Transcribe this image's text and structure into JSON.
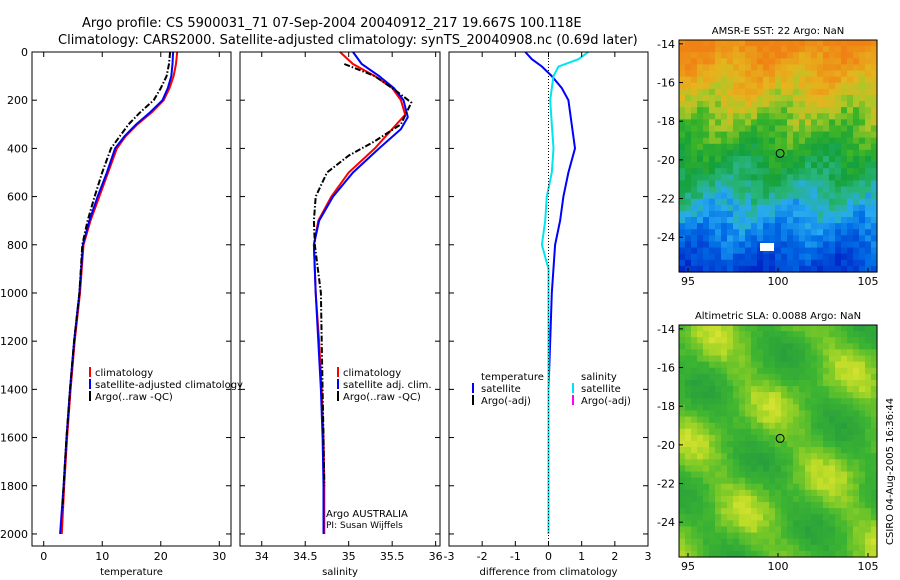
{
  "header": {
    "line1": "Argo profile: CS 5900031_71 07-Sep-2004 20040912_217 19.667S 100.118E",
    "line2": "Climatology: CARS2000. Satellite-adjusted climatology: synTS_20040908.nc (0.69d later)"
  },
  "colors": {
    "climatology": "#ff0000",
    "satellite": "#0000ff",
    "argo": "#000000",
    "salinity_satellite": "#00e5ee",
    "salinity_argo_adj": "#ff00ff"
  },
  "chart_data": [
    {
      "type": "line",
      "name": "temperature_profile",
      "xlabel": "temperature",
      "xlim": [
        -2,
        32
      ],
      "xticks": [
        0,
        10,
        20,
        30
      ],
      "ylim": [
        0,
        2050
      ],
      "yticks": [
        0,
        200,
        400,
        600,
        800,
        1000,
        1200,
        1400,
        1600,
        1800,
        2000
      ],
      "y_inverted": true,
      "legend": [
        "climatology",
        "satellite-adjusted climatology",
        "Argo(..raw -QC)"
      ],
      "series": [
        {
          "name": "climatology",
          "color": "#ff0000",
          "style": "solid",
          "points": [
            [
              22.8,
              0
            ],
            [
              22.6,
              50
            ],
            [
              22.2,
              100
            ],
            [
              21.5,
              150
            ],
            [
              20.5,
              200
            ],
            [
              18.5,
              250
            ],
            [
              16,
              300
            ],
            [
              14,
              350
            ],
            [
              12.5,
              400
            ],
            [
              11,
              500
            ],
            [
              9.5,
              600
            ],
            [
              8,
              700
            ],
            [
              6.8,
              800
            ],
            [
              6.2,
              1000
            ],
            [
              5.3,
              1200
            ],
            [
              4.6,
              1400
            ],
            [
              4,
              1600
            ],
            [
              3.5,
              1800
            ],
            [
              3.1,
              2000
            ]
          ]
        },
        {
          "name": "satellite-adjusted climatology",
          "color": "#0000ff",
          "style": "solid",
          "points": [
            [
              22.1,
              0
            ],
            [
              22,
              50
            ],
            [
              21.8,
              100
            ],
            [
              21.2,
              150
            ],
            [
              20.3,
              200
            ],
            [
              18.2,
              250
            ],
            [
              15.8,
              300
            ],
            [
              13.8,
              350
            ],
            [
              12.2,
              400
            ],
            [
              10.8,
              500
            ],
            [
              9.2,
              600
            ],
            [
              7.8,
              700
            ],
            [
              6.7,
              800
            ],
            [
              6.1,
              1000
            ],
            [
              5.2,
              1200
            ],
            [
              4.5,
              1400
            ],
            [
              3.9,
              1600
            ],
            [
              3.4,
              1800
            ],
            [
              2.8,
              2000
            ]
          ]
        },
        {
          "name": "Argo(..raw -QC)",
          "color": "#000000",
          "style": "dashdot",
          "points": [
            [
              21.6,
              0
            ],
            [
              21.4,
              50
            ],
            [
              21,
              100
            ],
            [
              20,
              150
            ],
            [
              18.8,
              200
            ],
            [
              16.5,
              250
            ],
            [
              14.5,
              300
            ],
            [
              13,
              350
            ],
            [
              11.5,
              400
            ],
            [
              10,
              500
            ],
            [
              8.7,
              600
            ],
            [
              7.5,
              700
            ],
            [
              6.6,
              800
            ],
            [
              6.1,
              1000
            ],
            [
              5.2,
              1200
            ],
            [
              4.5,
              1400
            ],
            [
              3.9,
              1600
            ],
            [
              3.4,
              1800
            ],
            [
              3.2,
              1900
            ]
          ]
        }
      ]
    },
    {
      "type": "line",
      "name": "salinity_profile",
      "xlabel": "salinity",
      "xlim": [
        33.75,
        36.05
      ],
      "xticks": [
        34,
        34.5,
        35,
        35.5,
        36
      ],
      "ylim": [
        0,
        2050
      ],
      "y_inverted": true,
      "legend": [
        "climatology",
        "satellite adj. clim.",
        "Argo(..raw -QC)"
      ],
      "annotation": [
        "Argo AUSTRALIA",
        "PI: Susan Wijffels"
      ],
      "series": [
        {
          "name": "climatology",
          "color": "#ff0000",
          "style": "solid",
          "points": [
            [
              34.9,
              0
            ],
            [
              35.05,
              50
            ],
            [
              35.3,
              100
            ],
            [
              35.5,
              150
            ],
            [
              35.6,
              200
            ],
            [
              35.65,
              260
            ],
            [
              35.55,
              300
            ],
            [
              35.3,
              400
            ],
            [
              35,
              500
            ],
            [
              34.8,
              600
            ],
            [
              34.65,
              700
            ],
            [
              34.6,
              800
            ],
            [
              34.62,
              1000
            ],
            [
              34.66,
              1200
            ],
            [
              34.69,
              1400
            ],
            [
              34.71,
              1600
            ],
            [
              34.72,
              1800
            ],
            [
              34.72,
              2000
            ]
          ]
        },
        {
          "name": "satellite adj. clim.",
          "color": "#0000ff",
          "style": "solid",
          "points": [
            [
              35.05,
              0
            ],
            [
              35.15,
              50
            ],
            [
              35.35,
              100
            ],
            [
              35.52,
              150
            ],
            [
              35.63,
              200
            ],
            [
              35.68,
              270
            ],
            [
              35.6,
              320
            ],
            [
              35.35,
              400
            ],
            [
              35.05,
              500
            ],
            [
              34.82,
              600
            ],
            [
              34.66,
              700
            ],
            [
              34.6,
              800
            ],
            [
              34.62,
              1000
            ],
            [
              34.65,
              1200
            ],
            [
              34.68,
              1400
            ],
            [
              34.7,
              1600
            ],
            [
              34.71,
              1800
            ],
            [
              34.71,
              2000
            ]
          ]
        },
        {
          "name": "Argo(..raw -QC)",
          "color": "#000000",
          "style": "dashdot",
          "points": [
            [
              34.95,
              50
            ],
            [
              35.3,
              100
            ],
            [
              35.5,
              150
            ],
            [
              35.65,
              190
            ],
            [
              35.72,
              210
            ],
            [
              35.6,
              300
            ],
            [
              35.3,
              370
            ],
            [
              35,
              430
            ],
            [
              34.75,
              500
            ],
            [
              34.62,
              600
            ],
            [
              34.6,
              700
            ],
            [
              34.61,
              800
            ],
            [
              34.68,
              1000
            ],
            [
              34.69,
              1200
            ],
            [
              34.7,
              1400
            ],
            [
              34.71,
              1600
            ],
            [
              34.72,
              1800
            ]
          ]
        }
      ]
    },
    {
      "type": "line",
      "name": "difference_profile",
      "xlabel": "difference from climatology",
      "xlim": [
        -3,
        3
      ],
      "xticks": [
        -3,
        -2,
        -1,
        0,
        1,
        2,
        3
      ],
      "ylim": [
        0,
        2050
      ],
      "y_inverted": true,
      "legend_left": [
        "temperature",
        "satellite",
        "Argo(-adj)"
      ],
      "legend_right": [
        "salinity",
        "satellite",
        "Argo(-adj)"
      ],
      "series": [
        {
          "name": "temperature satellite",
          "color": "#0000ff",
          "style": "solid",
          "points": [
            [
              -0.7,
              0
            ],
            [
              -0.5,
              30
            ],
            [
              -0.2,
              60
            ],
            [
              0.1,
              100
            ],
            [
              0.4,
              150
            ],
            [
              0.6,
              200
            ],
            [
              0.7,
              300
            ],
            [
              0.8,
              400
            ],
            [
              0.6,
              500
            ],
            [
              0.45,
              600
            ],
            [
              0.35,
              700
            ],
            [
              0.2,
              800
            ],
            [
              0.1,
              1000
            ],
            [
              0.05,
              1200
            ],
            [
              0,
              1400
            ],
            [
              0,
              1600
            ],
            [
              0,
              1800
            ],
            [
              0,
              2000
            ]
          ]
        },
        {
          "name": "salinity satellite",
          "color": "#00e5ee",
          "style": "solid",
          "points": [
            [
              1.2,
              0
            ],
            [
              0.9,
              30
            ],
            [
              0.3,
              60
            ],
            [
              0.15,
              100
            ],
            [
              0.1,
              150
            ],
            [
              0.05,
              200
            ],
            [
              0.1,
              300
            ],
            [
              0.15,
              400
            ],
            [
              0.1,
              500
            ],
            [
              -0.05,
              600
            ],
            [
              -0.1,
              700
            ],
            [
              -0.2,
              800
            ],
            [
              0,
              900
            ],
            [
              0,
              1000
            ],
            [
              0,
              1200
            ],
            [
              0,
              1400
            ],
            [
              0,
              1600
            ],
            [
              0,
              1800
            ],
            [
              0,
              2000
            ]
          ]
        }
      ]
    }
  ],
  "maps": [
    {
      "title": "AMSR-E SST: 22 Argo: NaN",
      "xticks": [
        "95",
        "100",
        "105"
      ],
      "yticks": [
        "-14",
        "-16",
        "-18",
        "-20",
        "-22",
        "-24"
      ],
      "xlim": [
        94.5,
        105.5
      ],
      "ylim": [
        -25.8,
        -13.8
      ],
      "marker_lon": 100.118,
      "marker_lat": -19.667
    },
    {
      "title": "Altimetric SLA: 0.0088 Argo: NaN",
      "xticks": [
        "95",
        "100",
        "105"
      ],
      "yticks": [
        "-14",
        "-16",
        "-18",
        "-20",
        "-22",
        "-24"
      ],
      "xlim": [
        94.5,
        105.5
      ],
      "ylim": [
        -25.8,
        -13.8
      ],
      "marker_lon": 100.118,
      "marker_lat": -19.667
    }
  ],
  "footer": {
    "stamp": "CSIRO 04-Aug-2005 16:36:44"
  }
}
